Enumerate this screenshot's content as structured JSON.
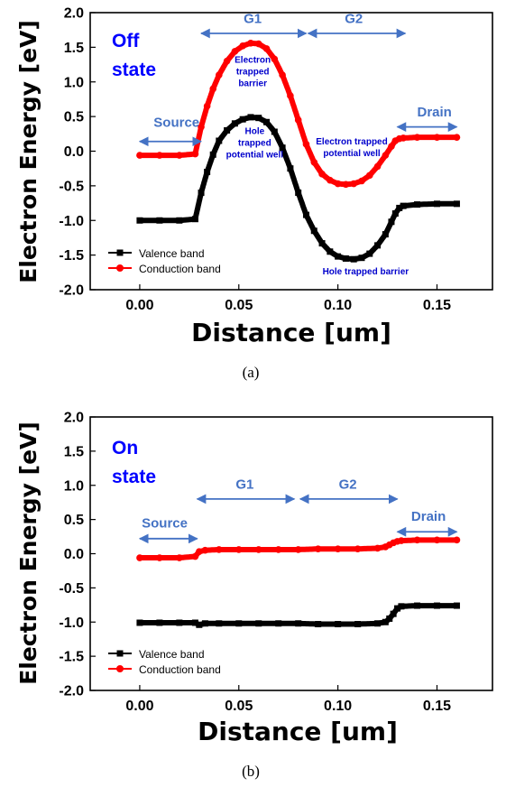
{
  "chart_data": [
    {
      "type": "scatter",
      "panel_caption": "(a)",
      "ylabel": "Electron Energy [eV]",
      "xlabel": "Distance [um]",
      "xlim": [
        -0.025,
        0.178
      ],
      "ylim": [
        -2.0,
        2.0
      ],
      "xticks": [
        "0.00",
        "0.05",
        "0.10",
        "0.15"
      ],
      "xtick_values": [
        0,
        0.05,
        0.1,
        0.15
      ],
      "yticks": [
        "2.0",
        "1.5",
        "1.0",
        "0.5",
        "0.0",
        "-0.5",
        "-1.0",
        "-1.5",
        "-2.0"
      ],
      "ytick_values": [
        2.0,
        1.5,
        1.0,
        0.5,
        0.0,
        -0.5,
        -1.0,
        -1.5,
        -2.0
      ],
      "state_label": [
        "Off",
        "state"
      ],
      "region_labels": [
        {
          "text": "Source",
          "x": 0.007,
          "y": 0.35,
          "from": 0.0,
          "to": 0.031,
          "arrow_y": 0.14
        },
        {
          "text": "G1",
          "x": 0.057,
          "y": 1.85,
          "from": 0.031,
          "to": 0.084,
          "arrow_y": 1.7
        },
        {
          "text": "G2",
          "x": 0.108,
          "y": 1.85,
          "from": 0.085,
          "to": 0.134,
          "arrow_y": 1.7
        },
        {
          "text": "Drain",
          "x": 0.14,
          "y": 0.5,
          "from": 0.13,
          "to": 0.16,
          "arrow_y": 0.35
        }
      ],
      "annotations": [
        {
          "lines": [
            "Electron",
            "trapped",
            "barrier"
          ],
          "x": 0.057,
          "y": 1.28
        },
        {
          "lines": [
            "Hole",
            "trapped",
            "potential well"
          ],
          "x": 0.058,
          "y": 0.25
        },
        {
          "lines": [
            "Electron trapped",
            "potential well"
          ],
          "x": 0.107,
          "y": 0.1
        },
        {
          "lines": [
            "Hole trapped barrier"
          ],
          "x": 0.114,
          "y": -1.78
        }
      ],
      "legend": [
        "Valence band",
        "Conduction band"
      ],
      "series": [
        {
          "name": "Valence band",
          "color": "#000000",
          "marker": "square",
          "x": [
            0.0,
            0.01,
            0.02,
            0.028,
            0.031,
            0.034,
            0.037,
            0.04,
            0.044,
            0.048,
            0.052,
            0.056,
            0.06,
            0.064,
            0.068,
            0.072,
            0.076,
            0.08,
            0.084,
            0.088,
            0.092,
            0.096,
            0.1,
            0.104,
            0.108,
            0.112,
            0.116,
            0.12,
            0.124,
            0.127,
            0.129,
            0.131,
            0.133,
            0.14,
            0.15,
            0.16
          ],
          "y": [
            -1.0,
            -1.0,
            -1.0,
            -0.98,
            -0.6,
            -0.3,
            -0.05,
            0.15,
            0.3,
            0.4,
            0.46,
            0.49,
            0.48,
            0.42,
            0.28,
            0.05,
            -0.25,
            -0.6,
            -0.92,
            -1.15,
            -1.33,
            -1.45,
            -1.52,
            -1.55,
            -1.56,
            -1.54,
            -1.48,
            -1.36,
            -1.2,
            -1.02,
            -0.9,
            -0.82,
            -0.79,
            -0.77,
            -0.76,
            -0.76
          ]
        },
        {
          "name": "Conduction band",
          "color": "#ff0000",
          "marker": "circle",
          "x": [
            0.0,
            0.01,
            0.02,
            0.028,
            0.031,
            0.034,
            0.037,
            0.04,
            0.044,
            0.048,
            0.052,
            0.056,
            0.06,
            0.064,
            0.068,
            0.072,
            0.076,
            0.08,
            0.084,
            0.088,
            0.092,
            0.096,
            0.1,
            0.104,
            0.108,
            0.112,
            0.116,
            0.12,
            0.124,
            0.127,
            0.129,
            0.131,
            0.133,
            0.14,
            0.15,
            0.16
          ],
          "y": [
            -0.06,
            -0.06,
            -0.06,
            -0.04,
            0.35,
            0.65,
            0.9,
            1.1,
            1.3,
            1.44,
            1.52,
            1.56,
            1.55,
            1.48,
            1.33,
            1.1,
            0.8,
            0.45,
            0.1,
            -0.16,
            -0.33,
            -0.42,
            -0.47,
            -0.48,
            -0.47,
            -0.43,
            -0.35,
            -0.22,
            -0.06,
            0.07,
            0.15,
            0.18,
            0.19,
            0.2,
            0.2,
            0.2
          ]
        }
      ]
    },
    {
      "type": "scatter",
      "panel_caption": "(b)",
      "ylabel": "Electron Energy [eV]",
      "xlabel": "Distance [um]",
      "xlim": [
        -0.025,
        0.178
      ],
      "ylim": [
        -2.0,
        2.0
      ],
      "xticks": [
        "0.00",
        "0.05",
        "0.10",
        "0.15"
      ],
      "xtick_values": [
        0,
        0.05,
        0.1,
        0.15
      ],
      "yticks": [
        "2.0",
        "1.5",
        "1.0",
        "0.5",
        "0.0",
        "-0.5",
        "-1.0",
        "-1.5",
        "-2.0"
      ],
      "ytick_values": [
        2.0,
        1.5,
        1.0,
        0.5,
        0.0,
        -0.5,
        -1.0,
        -1.5,
        -2.0
      ],
      "state_label": [
        "On",
        "state"
      ],
      "region_labels": [
        {
          "text": "Source",
          "x": 0.001,
          "y": 0.38,
          "from": 0.0,
          "to": 0.029,
          "arrow_y": 0.22
        },
        {
          "text": "G1",
          "x": 0.053,
          "y": 0.95,
          "from": 0.029,
          "to": 0.078,
          "arrow_y": 0.8
        },
        {
          "text": "G2",
          "x": 0.105,
          "y": 0.95,
          "from": 0.081,
          "to": 0.13,
          "arrow_y": 0.8
        },
        {
          "text": "Drain",
          "x": 0.137,
          "y": 0.48,
          "from": 0.13,
          "to": 0.16,
          "arrow_y": 0.32
        }
      ],
      "annotations": [],
      "legend": [
        "Valence band",
        "Conduction band"
      ],
      "series": [
        {
          "name": "Valence band",
          "color": "#000000",
          "marker": "square",
          "x": [
            0.0,
            0.01,
            0.02,
            0.028,
            0.03,
            0.033,
            0.04,
            0.05,
            0.06,
            0.07,
            0.08,
            0.09,
            0.1,
            0.11,
            0.12,
            0.124,
            0.126,
            0.128,
            0.13,
            0.132,
            0.14,
            0.15,
            0.16
          ],
          "y": [
            -1.01,
            -1.01,
            -1.01,
            -1.01,
            -1.04,
            -1.02,
            -1.02,
            -1.02,
            -1.02,
            -1.02,
            -1.02,
            -1.03,
            -1.03,
            -1.03,
            -1.02,
            -1.0,
            -0.95,
            -0.88,
            -0.8,
            -0.77,
            -0.76,
            -0.76,
            -0.76
          ]
        },
        {
          "name": "Conduction band",
          "color": "#ff0000",
          "marker": "circle",
          "x": [
            0.0,
            0.01,
            0.02,
            0.028,
            0.03,
            0.033,
            0.04,
            0.05,
            0.06,
            0.07,
            0.08,
            0.09,
            0.1,
            0.11,
            0.12,
            0.124,
            0.126,
            0.128,
            0.13,
            0.132,
            0.14,
            0.15,
            0.16
          ],
          "y": [
            -0.06,
            -0.06,
            -0.06,
            -0.04,
            0.03,
            0.05,
            0.06,
            0.06,
            0.06,
            0.06,
            0.06,
            0.07,
            0.07,
            0.07,
            0.08,
            0.1,
            0.13,
            0.16,
            0.18,
            0.19,
            0.2,
            0.2,
            0.2
          ]
        }
      ]
    }
  ],
  "colors": {
    "valence": "#000000",
    "conduction": "#ff0000",
    "state_text": "#0000ff",
    "region_text": "#4472c4",
    "note_text": "#0000cc",
    "arrow": "#4472c4"
  }
}
